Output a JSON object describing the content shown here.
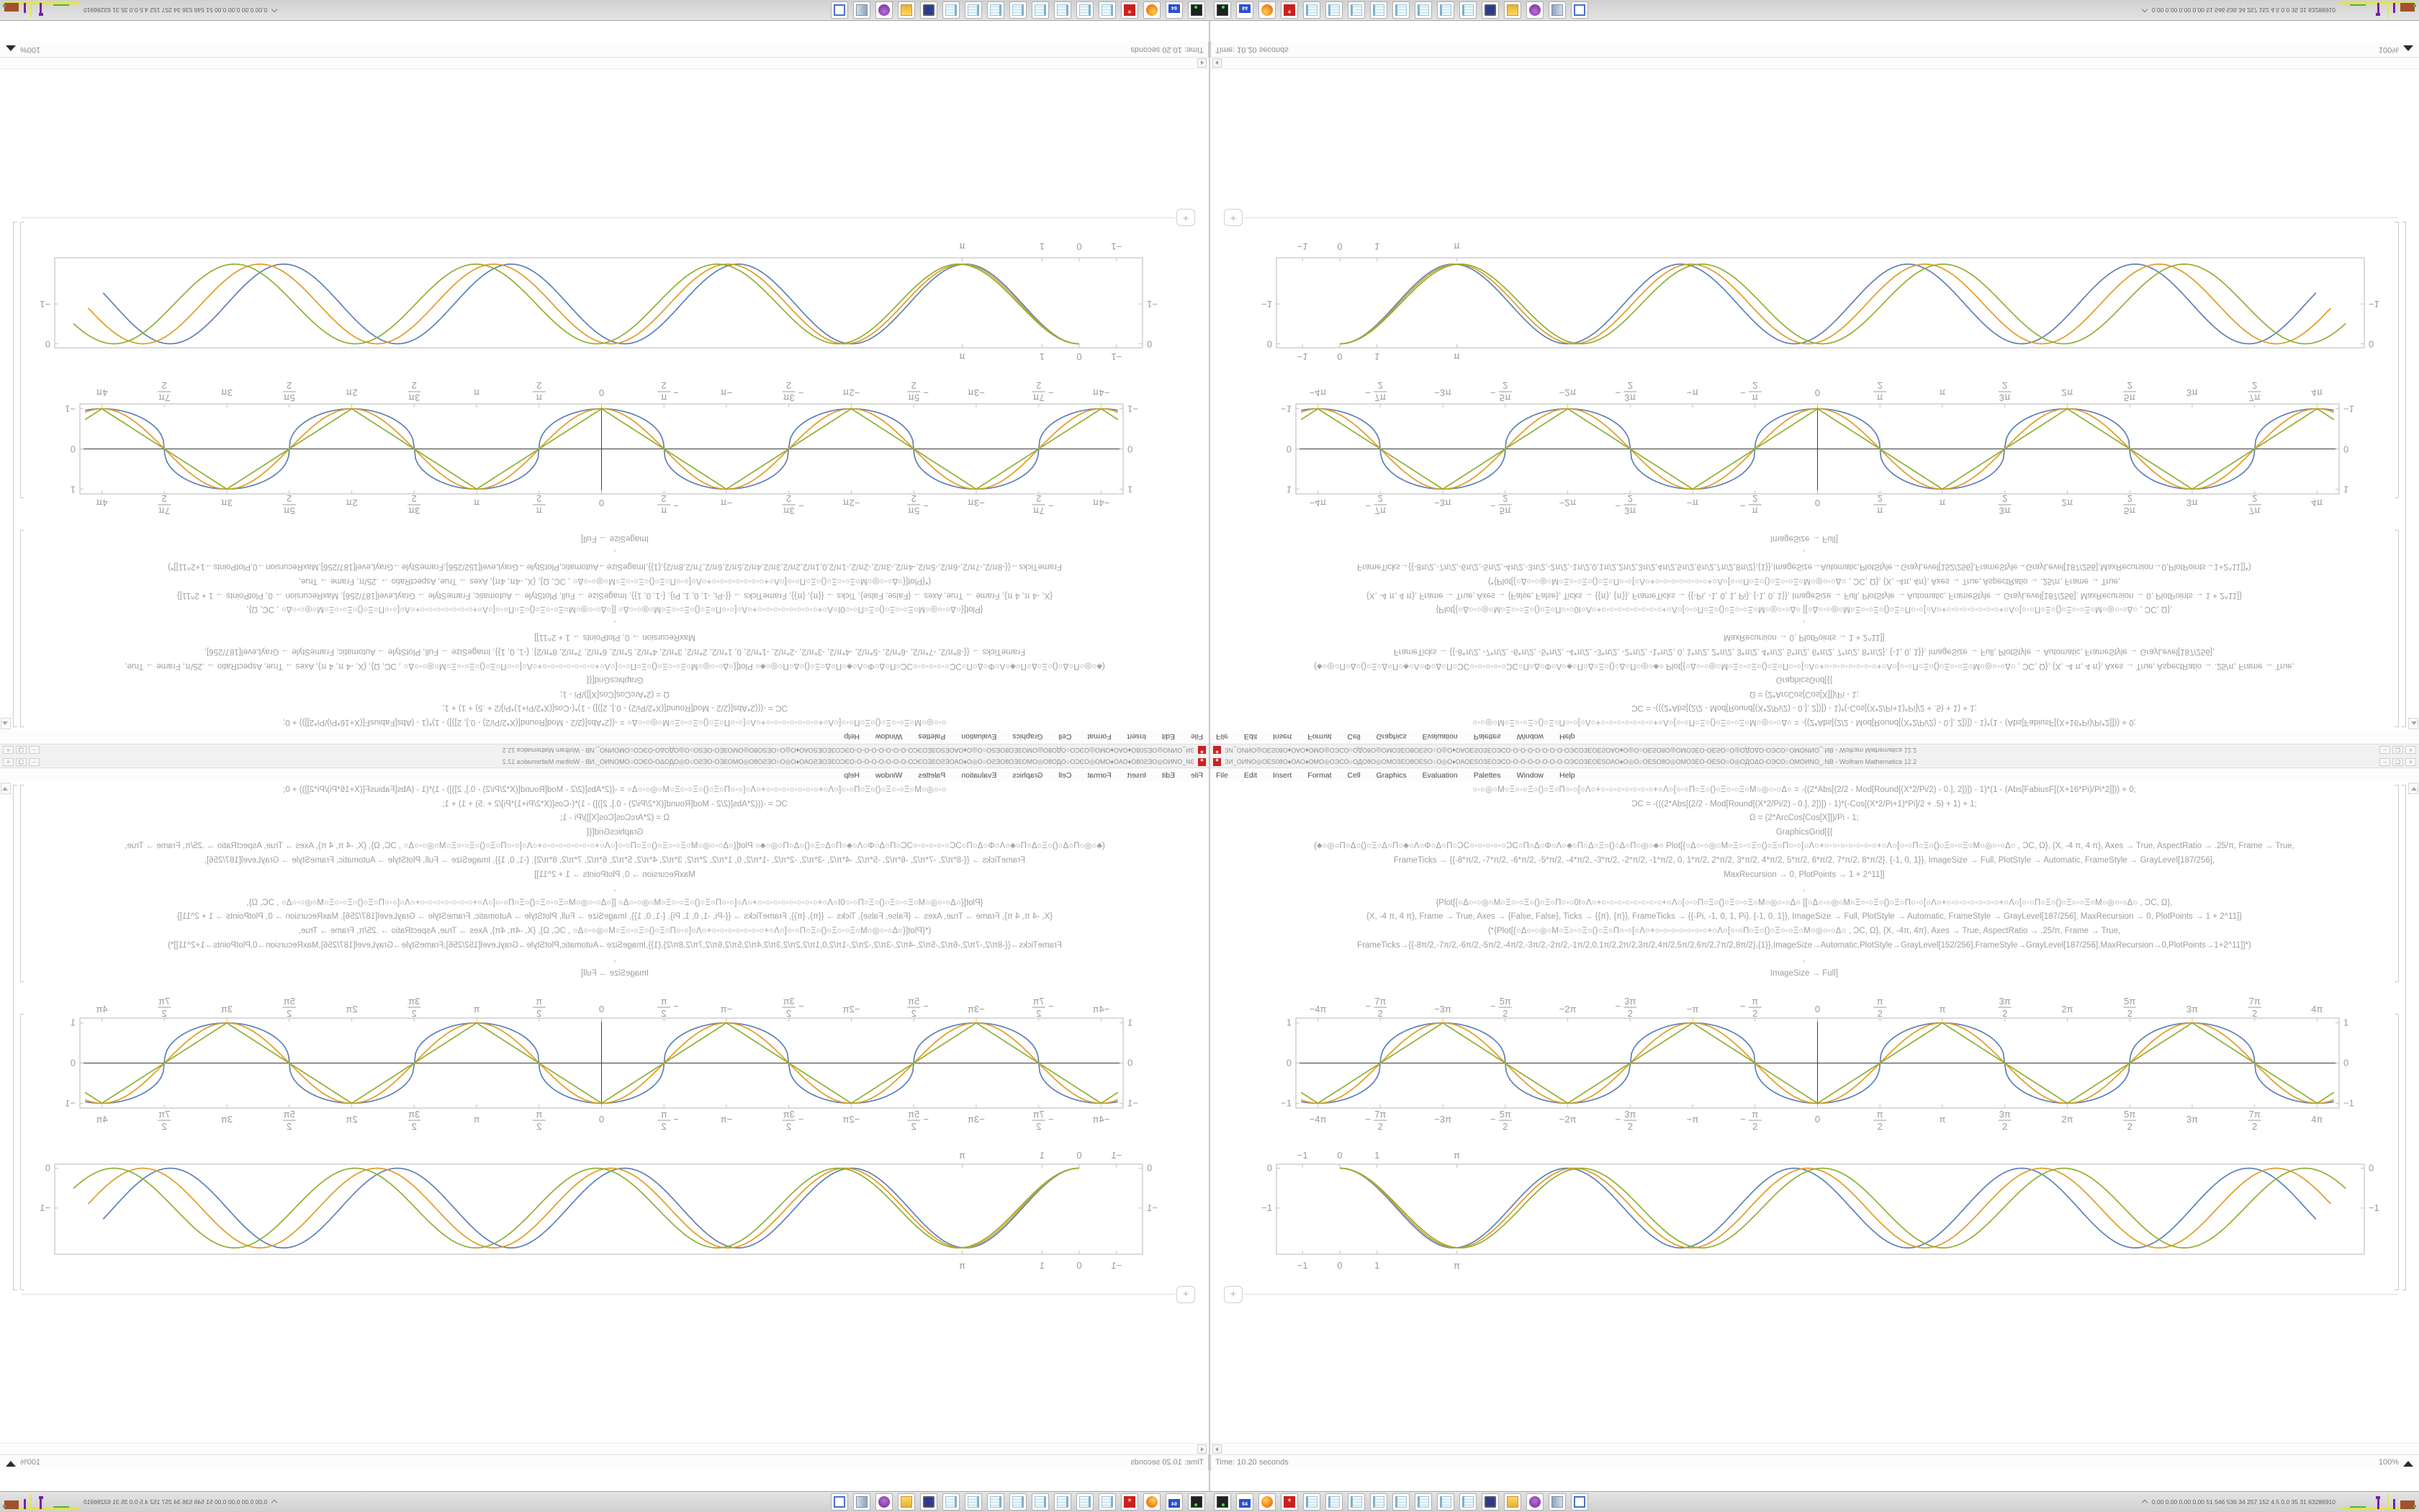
{
  "window": {
    "title": "ЗИ_ОИNО◎ОЕS08О♦ОАО♦ОМО◎ОЭСО○ОДО8О◎ОМОЗЕО8ОЕSО○О◎О♦ОАОЕSОЗЕОЭСО◦О◦О◦О◦О◦О◦О◦О◦ОЭСОЗЕОЕSОАО♦О◎О○ОЕSО8О◎ОМОЗЕО◦ОЕSО○О◎ОДОΔО◦ОЭСО○ОМОИNО_.NB - Wolfram Mathematica 12.2",
    "app_icon_glyph": "*",
    "menu": [
      "File",
      "Edit",
      "Insert",
      "Format",
      "Cell",
      "Graphics",
      "Evaluation",
      "Palettes",
      "Window",
      "Help"
    ],
    "win_buttons": [
      {
        "name": "minimize",
        "glyph": "–"
      },
      {
        "name": "maximize",
        "glyph": "❏"
      },
      {
        "name": "close",
        "glyph": "×"
      }
    ],
    "status_time": "Time: 10.20 seconds",
    "status_zoom": "100%"
  },
  "code_lines": [
    {
      "text": "○◦○◎○Μ○Ξ○◦○Ξ○()○Ξ○Π○◦○[○Λ○+○◦○◦○◦○◦○◦○◦○+○Λ○[○◦○Π○Ξ○()○Ξ○◦○Ξ○Μ○◎○◦○Δ○  = -((2*Abs[(2/2 - Mod[Round[(X*2/Pi/2) - 0.], 2])]) - 1)*(1 - (Abs[FabiusF[(X+16*Pi)/Pi*2]])) + 0;"
    },
    {
      "text": "ƆC = -(((2*Abs[(2/2 - Mod[Round[(X*2/Pi/2) - 0.], 2])]) - 1)*(-Cos[(X*2/Pi+1)*Pi]/2 + .5) + 1) + 1;"
    },
    {
      "text": "Ω = (2*ArcCos[Cos[X]])/Pi - 1;"
    },
    {
      "text": "GraphicsGrid[{{"
    },
    {
      "text": "(♣○◎○Π○Δ○()○Ξ○Δ○Π○♣○Λ○Φ○Δ○Π○ƆC○◦○◦○◦○◦○ƆC○Π○Δ○Φ○Λ○♣○Π○Δ○Ξ○()○Δ○Π○◎○♣○  Plot[{○Δ○◦○◎○Μ○Ξ○◦○Ξ○()○Ξ○Π○◦○[○Λ○+○◦○◦○◦○◦○◦○◦○+○Λ○[○◦○Π○Ξ○()○Ξ○◦○Ξ○Μ○◎○◦○Δ○ , ƆC, Ω}, {X, -4 π, 4 π}, Axes → True, AspectRatio → .25/π, Frame → True,"
    },
    {
      "text": "FrameTicks → {{-8*π/2, -7*π/2, -6*π/2, -5*π/2, -4*π/2, -3*π/2, -2*π/2, -1*π/2, 0, 1*π/2, 2*π/2, 3*π/2, 4*π/2, 5*π/2, 6*π/2, 7*π/2, 8*π/2}, {-1, 0, 1}}, ImageSize → Full, PlotStyle → Automatic, FrameStyle → GrayLevel[187/256],"
    },
    {
      "text": "MaxRecursion → 0, PlotPoints → 1 + 2^11]]"
    },
    {
      "text": ","
    },
    {
      "text": "{Plot[{○Δ○◦○◎○Μ○Ξ○◦○Ξ○()○Ξ○Π○◦○0Ι○Λ○+○◦○◦○◦○◦○◦○◦○◦○+○Λ○[○◦○Π○Ξ○()○Ξ○◦○Ξ○Μ○◎○◦○Δ○  [[○Δ○◦○◎○Μ○Ξ○◦○Ξ○()○Ξ○Π○◦○[○Λ○+○◦○◦○◦○◦○◦○◦○+○Λ○[○◦○Π○Ξ○()○Ξ○◦○Ξ○Μ○◎○◦○Δ○ , ƆC, Ω},"
    },
    {
      "text": "{X, -4 π, 4 π}, Frame → True, Axes → {False, False}, Ticks → {{π}, {π}}, FrameTicks → {{-Pi, -1, 0, 1, Pi}, {-1, 0, 1}}, ImageSize → Full, PlotStyle → Automatic, FrameStyle → GrayLevel[187/256], MaxRecursion → 0, PlotPoints → 1 + 2^11]}"
    },
    {
      "text": "(*{Plot[{○Δ○◦○◎○Μ○Ξ○◦○Ξ○()○Ξ○Π○◦○[○Λ○+○◦○◦○◦○◦○◦○◦○+○Λ○[○◦○Π○Ξ○()○Ξ○◦○Ξ○Μ○◎○◦○Δ○ , ƆC, Ω}, {X, -4π, 4π}, Axes → True, AspectRatio → .25/π, Frame → True,"
    },
    {
      "text": "FrameTicks→{{-8π/2,-7π/2,-6π/2,-5π/2,-4π/2,-3π/2,-2π/2,-1π/2,0,1π/2,2π/2,3π/2,4π/2,5π/2,6π/2,7π/2,8π/2},{1}},ImageSize→Automatic,PlotStyle→GrayLevel[152/256],FrameStyle→GrayLevel[187/256],MaxRecursion→0,PlotPoints→1+2^11]]*)"
    },
    {
      "text": ","
    },
    {
      "text": "ImageSize → Full]"
    }
  ],
  "chart_data": [
    {
      "id": "plot-main",
      "type": "line",
      "title": "",
      "xlabel": "",
      "ylabel": "",
      "frame": true,
      "frame_color": "#c3c3c3",
      "grid": false,
      "axis_lines": true,
      "legend": "none",
      "x_range": [
        -13.12,
        13.12
      ],
      "y_range": [
        -1.12,
        1.12
      ],
      "x_ticks": [
        {
          "v": -12.566,
          "l": "-4π"
        },
        {
          "v": -10.996,
          "l": "-7π/2"
        },
        {
          "v": -9.425,
          "l": "-3π"
        },
        {
          "v": -7.854,
          "l": "-5π/2"
        },
        {
          "v": -6.283,
          "l": "-2π"
        },
        {
          "v": -4.712,
          "l": "-3π/2"
        },
        {
          "v": -3.1416,
          "l": "-π"
        },
        {
          "v": -1.5708,
          "l": "-π/2"
        },
        {
          "v": 0,
          "l": "0"
        },
        {
          "v": 1.5708,
          "l": "π/2"
        },
        {
          "v": 3.1416,
          "l": "π"
        },
        {
          "v": 4.712,
          "l": "3π/2"
        },
        {
          "v": 6.283,
          "l": "2π"
        },
        {
          "v": 7.854,
          "l": "5π/2"
        },
        {
          "v": 9.425,
          "l": "3π"
        },
        {
          "v": 10.996,
          "l": "7π/2"
        },
        {
          "v": 12.566,
          "l": "4π"
        }
      ],
      "y_ticks": [
        {
          "v": 1,
          "l": "1"
        },
        {
          "v": 0,
          "l": "0"
        },
        {
          "v": -1,
          "l": "-1"
        }
      ],
      "series": [
        {
          "name": "flattened-square-wave",
          "color": "#5e81b5",
          "fn": "flatcos",
          "domain": [
            -12.99,
            12.99
          ]
        },
        {
          "name": "negative-cosine",
          "color": "#e19c24",
          "fn": "negcos",
          "domain": [
            -12.99,
            12.99
          ]
        },
        {
          "name": "triangle-wave",
          "color": "#8fb032",
          "fn": "triangle",
          "domain": [
            -12.99,
            12.99
          ]
        }
      ]
    },
    {
      "id": "plot-shifted",
      "type": "line",
      "title": "",
      "xlabel": "",
      "ylabel": "",
      "frame": true,
      "frame_color": "#c3c3c3",
      "grid": false,
      "axis_lines": false,
      "legend": "none",
      "x_range": [
        -1.7,
        27.5
      ],
      "y_range": [
        -2.16,
        0.1
      ],
      "x_ticks": [
        {
          "v": -1,
          "l": "-1"
        },
        {
          "v": 0,
          "l": "0"
        },
        {
          "v": 1,
          "l": "1"
        },
        {
          "v": 3.1416,
          "l": "π"
        }
      ],
      "y_ticks": [
        {
          "v": 0,
          "l": "0"
        },
        {
          "v": -1,
          "l": "-1"
        }
      ],
      "series": [
        {
          "name": "cos-minus-one-fast",
          "color": "#5e81b5",
          "fn": "coskm1",
          "k": 1.03,
          "domain": [
            0,
            26.2
          ]
        },
        {
          "name": "cos-minus-one",
          "color": "#e19c24",
          "fn": "coskm1",
          "k": 1.0,
          "domain": [
            0,
            26.6
          ]
        },
        {
          "name": "cos-minus-one-slow",
          "color": "#8fb032",
          "fn": "coskm1",
          "k": 0.97,
          "domain": [
            0,
            27.0
          ]
        }
      ]
    }
  ],
  "insert_button_glyph": "+",
  "taskbar": {
    "icons": [
      {
        "name": "drive-icon",
        "label": ""
      },
      {
        "name": "floppy64-icon",
        "label": "64"
      },
      {
        "name": "firefox-icon",
        "label": ""
      },
      {
        "name": "mathematica-icon",
        "label": "*"
      },
      {
        "name": "notepad-icon",
        "label": ""
      },
      {
        "name": "notepad-icon",
        "label": ""
      },
      {
        "name": "notepad-icon",
        "label": ""
      },
      {
        "name": "notepad-icon",
        "label": ""
      },
      {
        "name": "notepad-icon",
        "label": ""
      },
      {
        "name": "notepad-icon",
        "label": ""
      },
      {
        "name": "notepad-icon",
        "label": ""
      },
      {
        "name": "notepad-icon",
        "label": ""
      },
      {
        "name": "monitor-icon",
        "label": ""
      },
      {
        "name": "folder-icon",
        "label": ""
      },
      {
        "name": "avatar-icon",
        "label": ""
      },
      {
        "name": "scroll-icon",
        "label": ""
      },
      {
        "name": "window-icon",
        "label": ""
      }
    ],
    "stats": "0.00 0.00 0.00 0.00  51  546 536  34  257 152  4.5  0.0  35  31 63286910"
  }
}
